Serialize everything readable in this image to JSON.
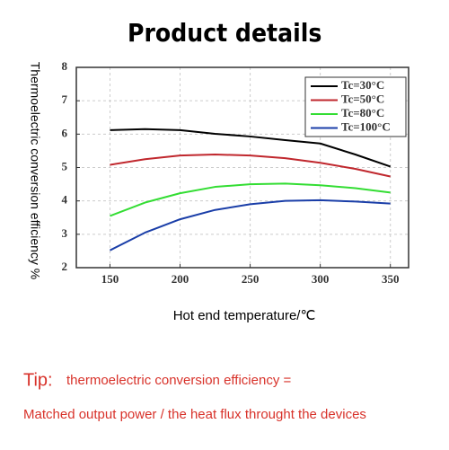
{
  "chart_data": {
    "type": "line",
    "title": "Product details",
    "x_label": "Hot end temperature/℃",
    "y_label": "Thermoelectric conversion efficiency %",
    "x": [
      150,
      175,
      200,
      225,
      250,
      275,
      300,
      325,
      350
    ],
    "series": [
      {
        "name": "Tc=30°C",
        "color": "#000000",
        "values": [
          6.12,
          6.15,
          6.12,
          6.01,
          5.93,
          5.82,
          5.72,
          5.39,
          5.03
        ]
      },
      {
        "name": "Tc=50°C",
        "color": "#c0272d",
        "values": [
          5.08,
          5.25,
          5.36,
          5.39,
          5.36,
          5.28,
          5.14,
          4.96,
          4.73
        ]
      },
      {
        "name": "Tc=80°C",
        "color": "#33dd33",
        "values": [
          3.55,
          3.95,
          4.23,
          4.42,
          4.5,
          4.52,
          4.47,
          4.38,
          4.25
        ]
      },
      {
        "name": "Tc=100°C",
        "color": "#1a3ea8",
        "values": [
          2.52,
          3.05,
          3.45,
          3.73,
          3.9,
          4.0,
          4.02,
          3.98,
          3.92
        ]
      }
    ],
    "xlim": [
      126,
      363
    ],
    "ylim": [
      2,
      8
    ],
    "xticks": [
      150,
      200,
      250,
      300,
      350
    ],
    "yticks": [
      2,
      3,
      4,
      5,
      6,
      7,
      8
    ],
    "grid": true,
    "legend": "upper right"
  },
  "tip": {
    "label": "Tip:",
    "line1": "thermoelectric conversion efficiency =",
    "line2": "Matched output power / the heat flux throught the devices"
  }
}
